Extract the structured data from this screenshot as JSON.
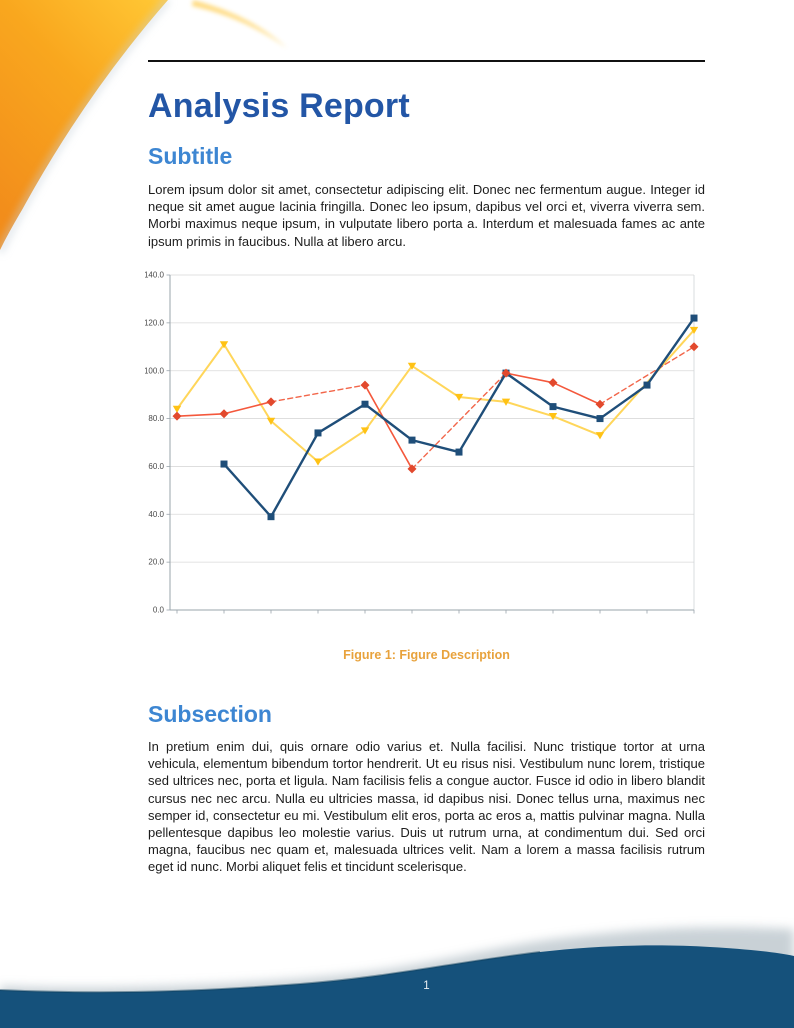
{
  "page": {
    "title": "Analysis Report",
    "subtitle_heading": "Subtitle",
    "intro_paragraph": "Lorem ipsum dolor sit amet, consectetur adipiscing elit. Donec nec fermentum augue. Integer id neque sit amet augue lacinia fringilla. Donec leo ipsum, dapibus vel orci et, viverra viverra sem. Morbi maximus neque ipsum, in vulputate libero porta a. Interdum et malesuada fames ac ante ipsum primis in faucibus. Nulla at libero arcu.",
    "figure_caption": "Figure 1: Figure Description",
    "subsection_heading": "Subsection",
    "subsection_paragraph": "In pretium enim dui, quis ornare odio varius et. Nulla facilisi. Nunc tristique tortor at urna vehicula, elementum bibendum tortor hendrerit. Ut eu risus nisi. Vestibulum nunc lorem, tristique sed ultrices nec, porta et ligula. Nam facilisis felis a congue auctor. Fusce id odio in libero blandit cursus nec nec arcu. Nulla eu ultricies massa, id dapibus nisi. Donec tellus urna, maximus nec semper id, consectetur eu mi. Vestibulum elit eros, porta ac eros a, mattis pulvinar magna. Nulla pellentesque dapibus leo molestie varius. Duis ut rutrum urna, at condimentum dui. Sed orci magna, faucibus nec quam et, malesuada ultrices velit. Nam a lorem a massa facilisis rutrum eget id nunc. Morbi aliquet felis et tincidunt scelerisque.",
    "page_number": "1"
  },
  "colors": {
    "title_blue": "#2356A6",
    "heading_blue": "#3D86D2",
    "caption_orange": "#E8A23C",
    "footer_blue": "#15517B",
    "decoration_orange": "#F9A71E"
  },
  "chart_data": {
    "type": "line",
    "title": "",
    "xlabel": "",
    "ylabel": "",
    "x": [
      1,
      2,
      3,
      4,
      5,
      6,
      7,
      8,
      9,
      10,
      11,
      12
    ],
    "x_tick_labels_shown": false,
    "ylim": [
      0,
      140
    ],
    "ytick_step": 20,
    "ytick_format_decimals": 1,
    "grid": "horizontal",
    "legend_position": "none",
    "note": "null values are gaps; red series bridges gaps with dashed segments",
    "series": [
      {
        "name": "series-1-blue",
        "color": "#1F4E79",
        "marker": "square",
        "marker_color": "#1F4E79",
        "dash_gaps": false,
        "line_z": 3,
        "marker_z": 2,
        "values": [
          null,
          61,
          39,
          74,
          86,
          71,
          66,
          99,
          85,
          80,
          94,
          122
        ]
      },
      {
        "name": "series-2-yellow",
        "color": "#FFD65A",
        "marker": "triangle-down",
        "marker_color": "#FFC214",
        "dash_gaps": false,
        "line_z": 1,
        "marker_z": 1,
        "values": [
          84,
          111,
          79,
          62,
          75,
          102,
          89,
          87,
          81,
          73,
          null,
          117
        ]
      },
      {
        "name": "series-3-red",
        "color": "#F4583C",
        "gap_color": "#F2664A",
        "marker": "diamond",
        "marker_color": "#E2492D",
        "dash_gaps": true,
        "line_z": 2,
        "marker_z": 3,
        "values": [
          81,
          82,
          87,
          null,
          94,
          59,
          null,
          99,
          95,
          86,
          null,
          110
        ]
      }
    ]
  }
}
